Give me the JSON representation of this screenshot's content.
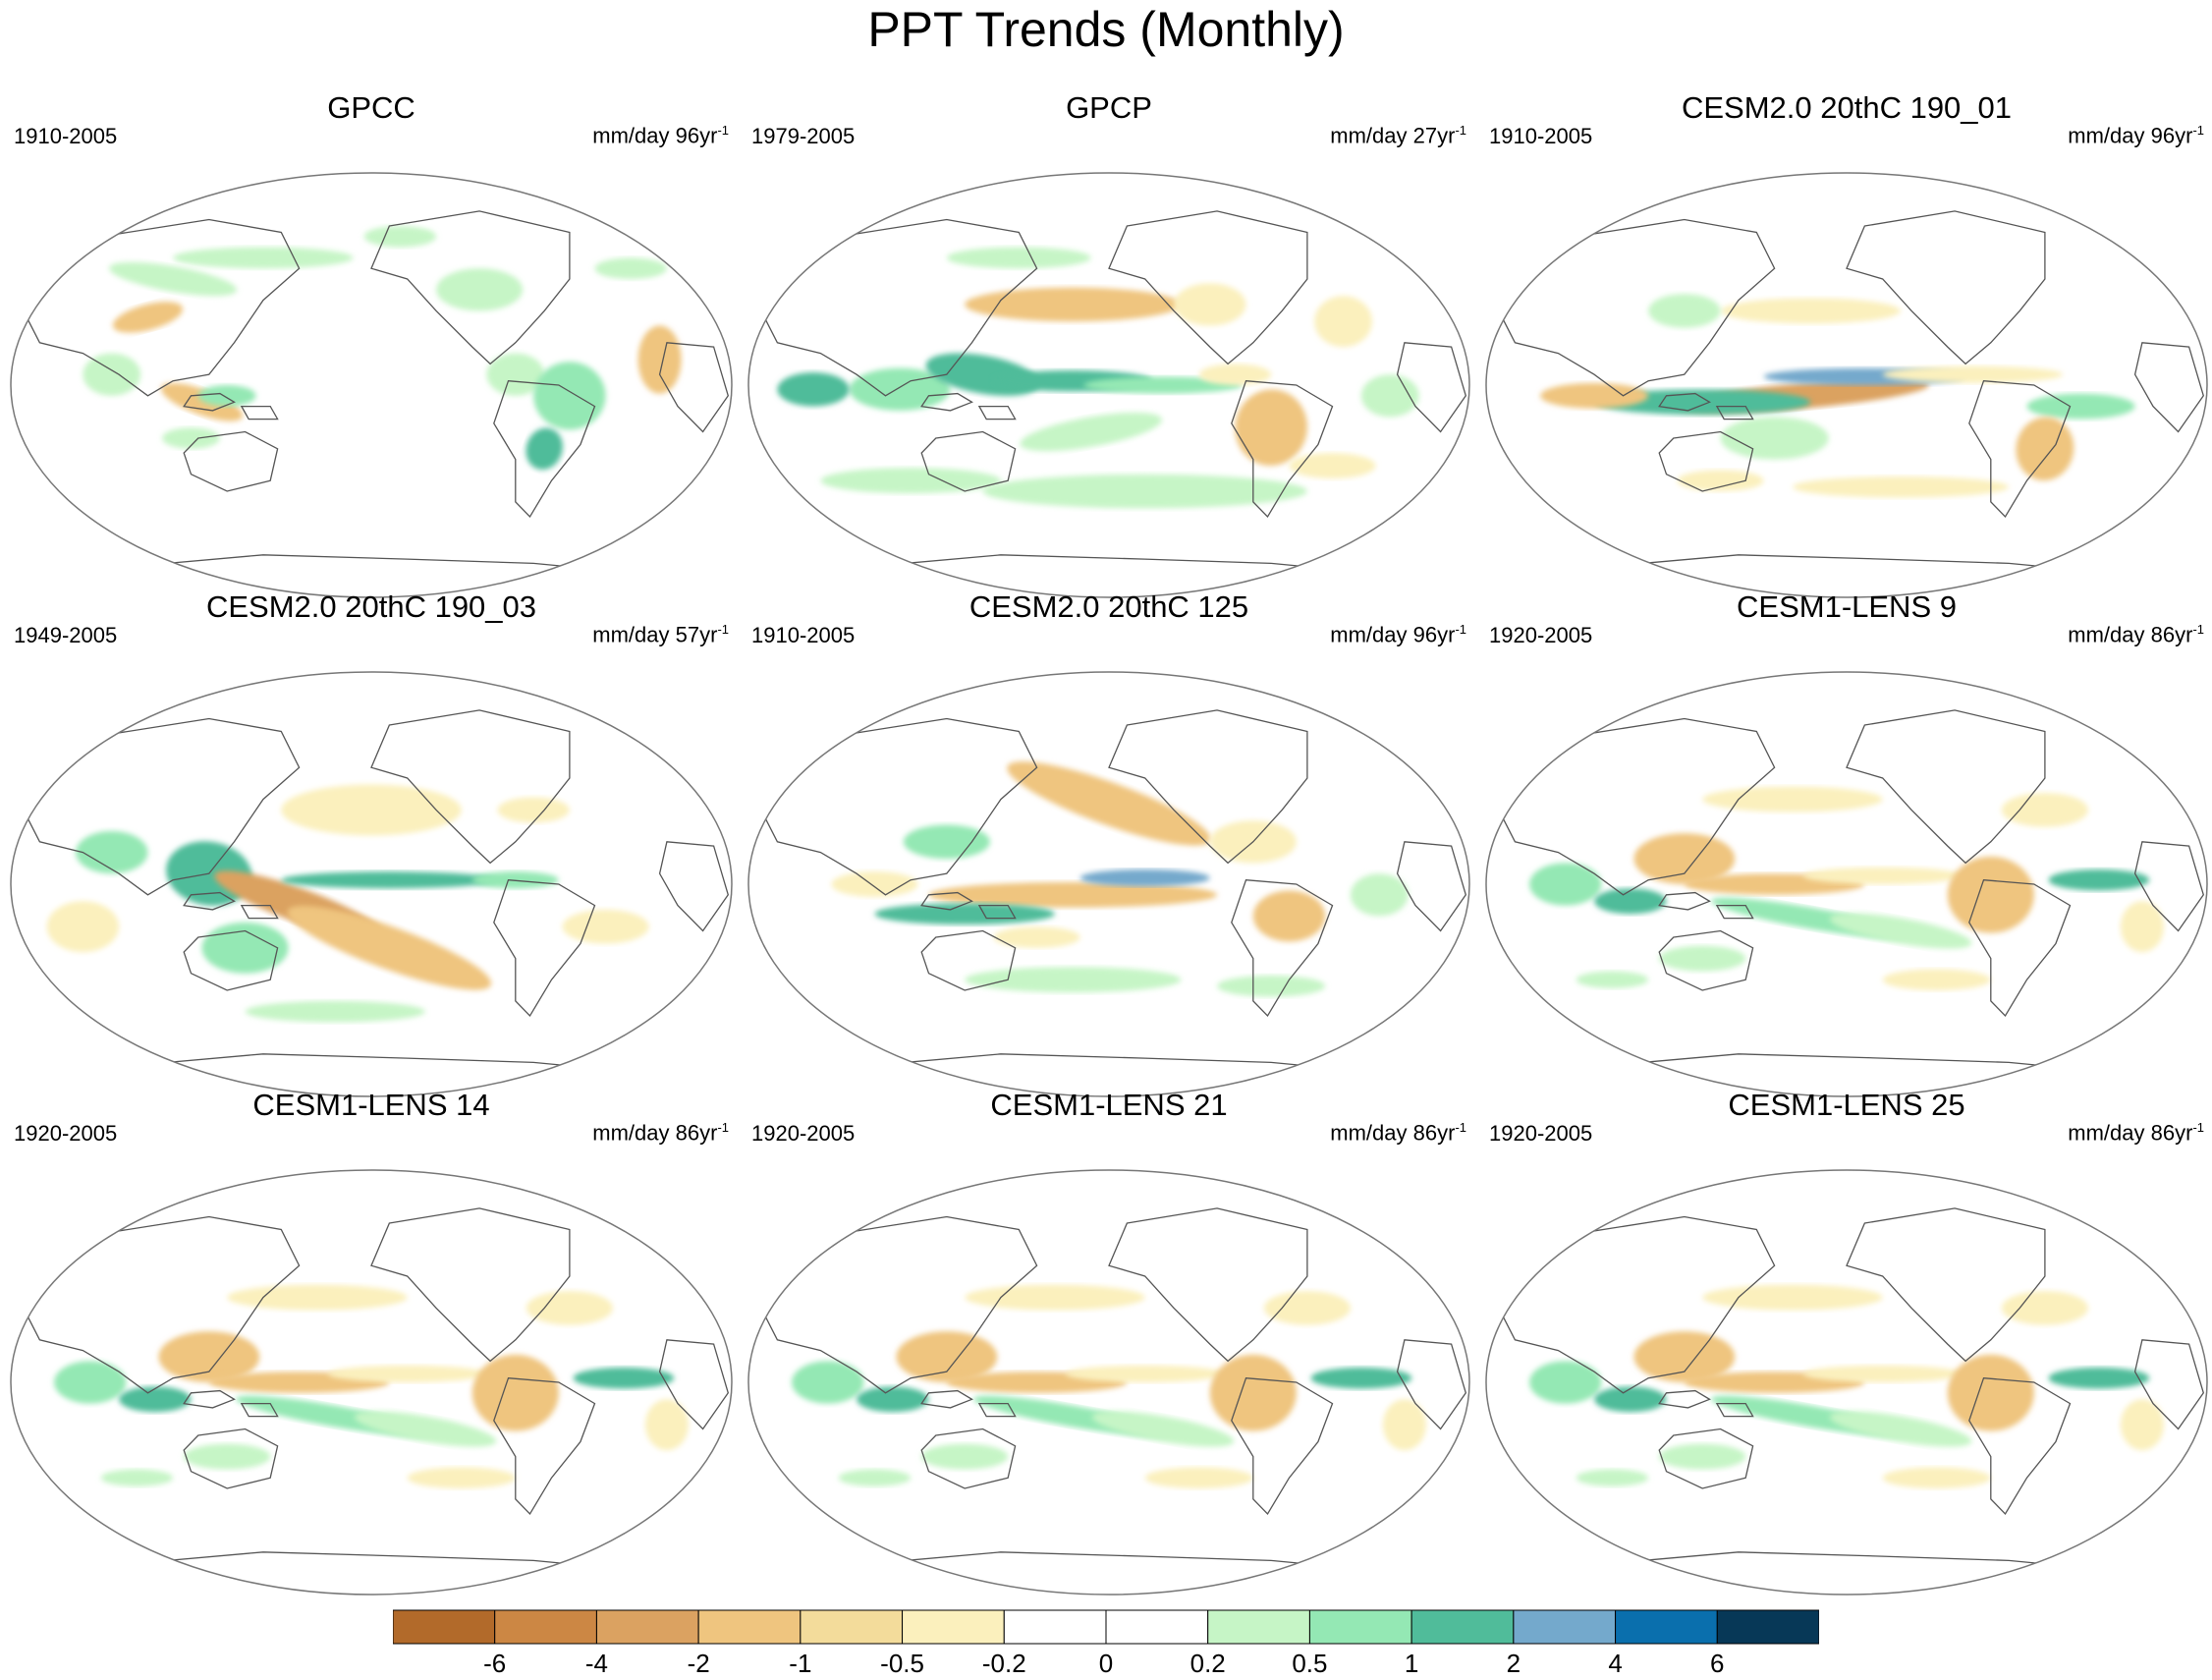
{
  "title": "PPT Trends (Monthly)",
  "panels": [
    {
      "title": "GPCC",
      "period": "1910-2005",
      "units": "mm/day 96yr",
      "units_exp": "-1",
      "pattern": "gpcc"
    },
    {
      "title": "GPCP",
      "period": "1979-2005",
      "units": "mm/day 27yr",
      "units_exp": "-1",
      "pattern": "gpcp"
    },
    {
      "title": "CESM2.0 20thC 190_01",
      "period": "1910-2005",
      "units": "mm/day 96yr",
      "units_exp": "-1",
      "pattern": "cesm2_01"
    },
    {
      "title": "CESM2.0 20thC 190_03",
      "period": "1949-2005",
      "units": "mm/day 57yr",
      "units_exp": "-1",
      "pattern": "cesm2_03"
    },
    {
      "title": "CESM2.0 20thC 125",
      "period": "1910-2005",
      "units": "mm/day 96yr",
      "units_exp": "-1",
      "pattern": "cesm2_125"
    },
    {
      "title": "CESM1-LENS 9",
      "period": "1920-2005",
      "units": "mm/day 86yr",
      "units_exp": "-1",
      "pattern": "lens"
    },
    {
      "title": "CESM1-LENS 14",
      "period": "1920-2005",
      "units": "mm/day 86yr",
      "units_exp": "-1",
      "pattern": "lens"
    },
    {
      "title": "CESM1-LENS 21",
      "period": "1920-2005",
      "units": "mm/day 86yr",
      "units_exp": "-1",
      "pattern": "lens"
    },
    {
      "title": "CESM1-LENS 25",
      "period": "1920-2005",
      "units": "mm/day 86yr",
      "units_exp": "-1",
      "pattern": "lens"
    }
  ],
  "colorbar": {
    "labels": [
      "-6",
      "-4",
      "-2",
      "-1",
      "-0.5",
      "-0.2",
      "0",
      "0.2",
      "0.5",
      "1",
      "2",
      "4",
      "6"
    ],
    "colors": [
      "#b26a2a",
      "#cc8744",
      "#dba261",
      "#efc57f",
      "#f3dc9b",
      "#fbf0bd",
      "#ffffff",
      "#ffffff",
      "#c6f5c6",
      "#94e8b4",
      "#50bc9a",
      "#74a9cc",
      "#0a6fad",
      "#073857"
    ]
  },
  "map_style": {
    "coast_color": "#555555",
    "border_color": "#777777",
    "wet_light": "#c6f5c6",
    "wet_mid": "#94e8b4",
    "wet_strong": "#50bc9a",
    "wet_blue": "#74a9cc",
    "dry_light": "#fbf0bd",
    "dry_mid": "#efc57f",
    "dry_strong": "#dba261"
  }
}
